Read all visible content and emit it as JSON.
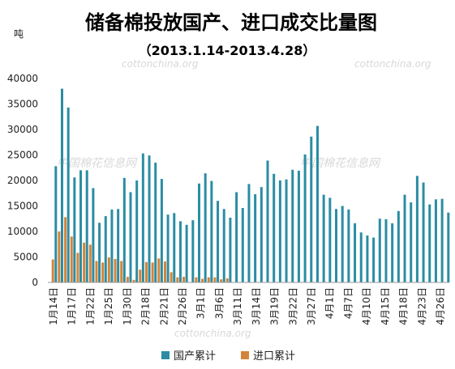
{
  "chart_data": {
    "type": "bar",
    "title": "储备棉投放国产、进口成交比量图",
    "subtitle": "（2013.1.14-2013.4.28）",
    "ylabel": "吨",
    "ylim": [
      0,
      40000
    ],
    "yticks": [
      0,
      5000,
      10000,
      15000,
      20000,
      25000,
      30000,
      35000,
      40000
    ],
    "xtick_labels": [
      "1月14日",
      "1月17日",
      "1月22日",
      "1月25日",
      "1月30日",
      "2月18日",
      "2月21日",
      "2月26日",
      "3月1日",
      "3月6日",
      "3月11日",
      "3月14日",
      "3月19日",
      "3月22日",
      "3月27日",
      "4月1日",
      "4月7日",
      "4月10日",
      "4月15日",
      "4月18日",
      "4月23日",
      "4月26日"
    ],
    "legend_position": "bottom",
    "colors": {
      "domestic": "#2b8da3",
      "import": "#d4843a"
    },
    "series": [
      {
        "name": "国产累计",
        "values": [
          22800,
          38000,
          34300,
          20600,
          22000,
          22000,
          18500,
          11700,
          13000,
          14300,
          14400,
          20500,
          17700,
          20000,
          25300,
          24900,
          23500,
          20300,
          13300,
          13600,
          12000,
          11300,
          12200,
          19400,
          21400,
          19900,
          16000,
          14400,
          12700,
          17700,
          14600,
          19300,
          17300,
          18700,
          23900,
          21300,
          20000,
          20200,
          22100,
          21900,
          25100,
          28600,
          30700,
          17200,
          16600,
          14400,
          15000,
          14300,
          11600,
          9800,
          9200,
          8800,
          12500,
          12400,
          11600,
          14000,
          17200,
          15700,
          20900,
          19600,
          15300,
          16300,
          16400,
          13700
        ]
      },
      {
        "name": "进口累计",
        "values": [
          4500,
          10000,
          12800,
          9000,
          5800,
          7800,
          7400,
          4200,
          3900,
          4900,
          4600,
          4200,
          1100,
          500,
          2500,
          4000,
          3900,
          4700,
          4100,
          2000,
          1000,
          1100,
          0,
          1000,
          700,
          1000,
          1000,
          600,
          800,
          0,
          0,
          0,
          0,
          0,
          0,
          0,
          0,
          0,
          0,
          0,
          0,
          0,
          0,
          0,
          0,
          0,
          0,
          0,
          0,
          0,
          0,
          0,
          0,
          0,
          0,
          0,
          0,
          0,
          0,
          0,
          0,
          0,
          0,
          0
        ]
      }
    ]
  },
  "watermarks": [
    "cottonchina.org",
    "中国棉花信息网"
  ]
}
